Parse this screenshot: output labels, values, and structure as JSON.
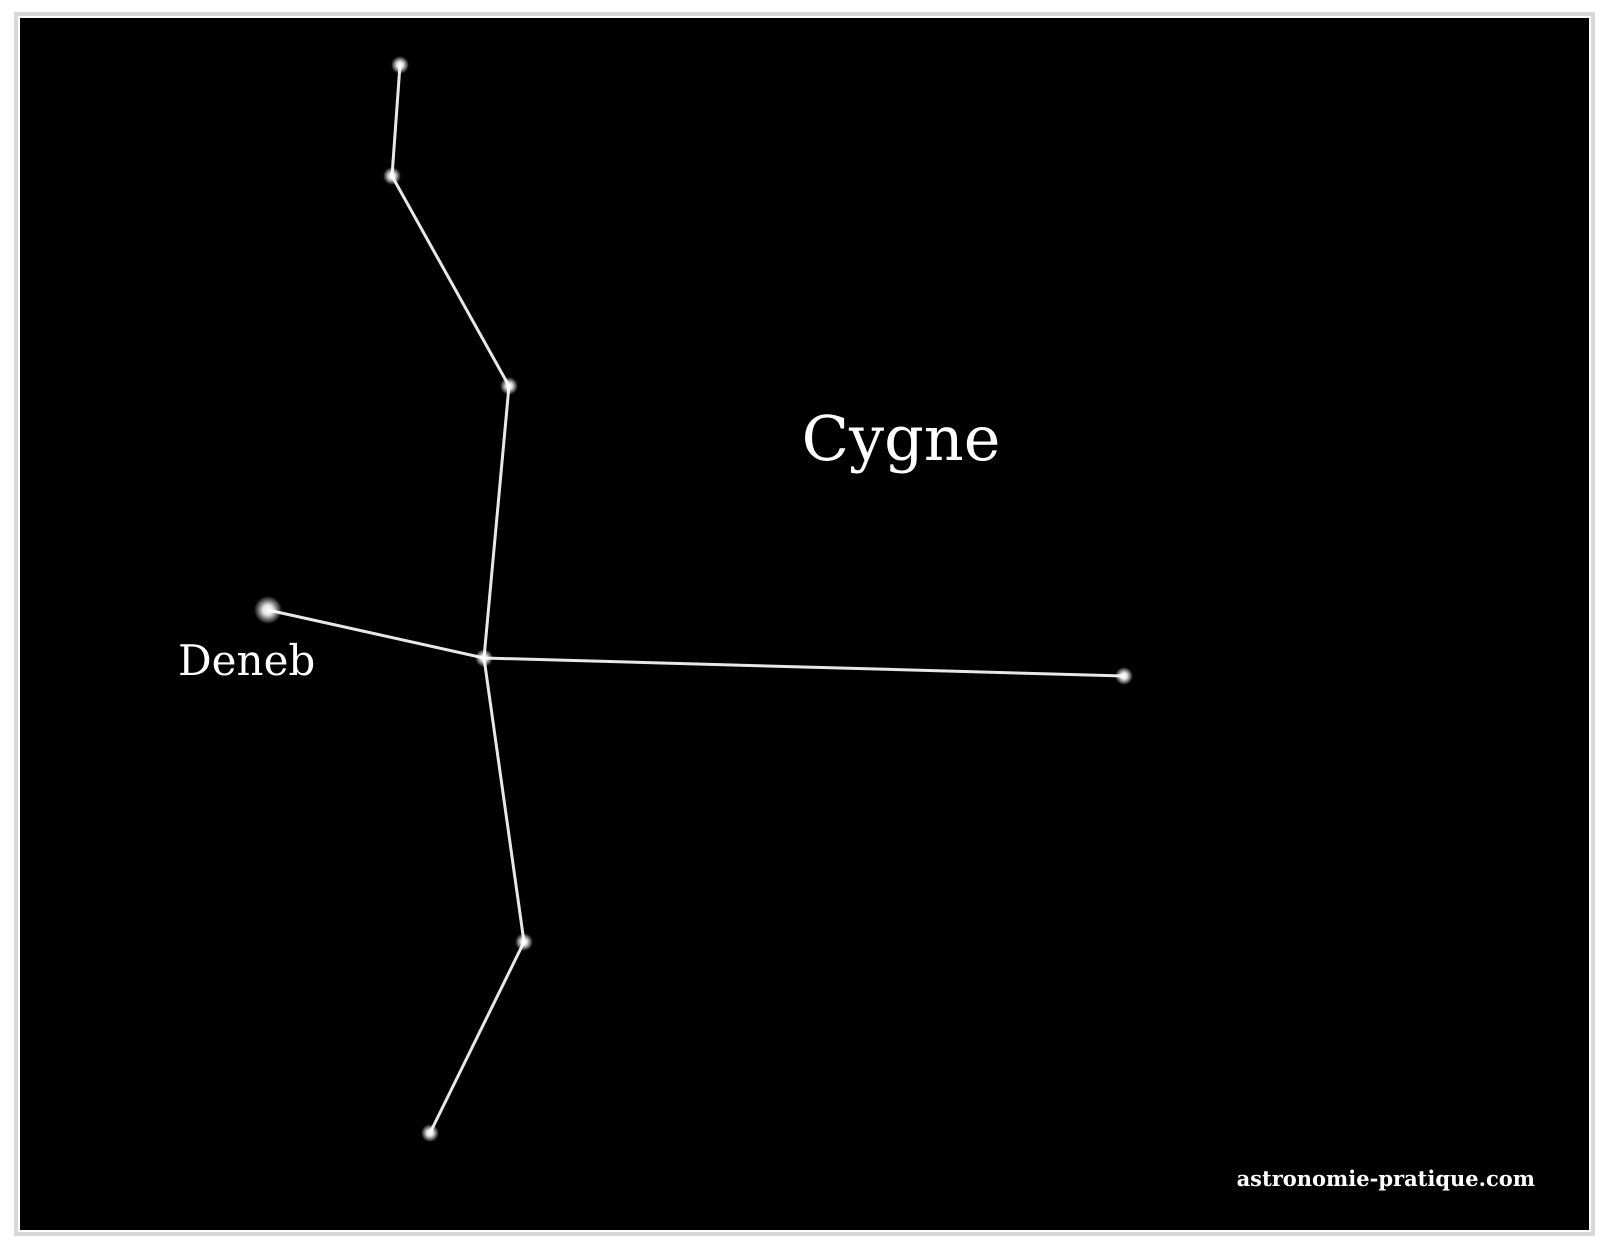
{
  "title": "Cygne",
  "star_label": "Deneb",
  "credit": "astronomie-pratique.com"
}
